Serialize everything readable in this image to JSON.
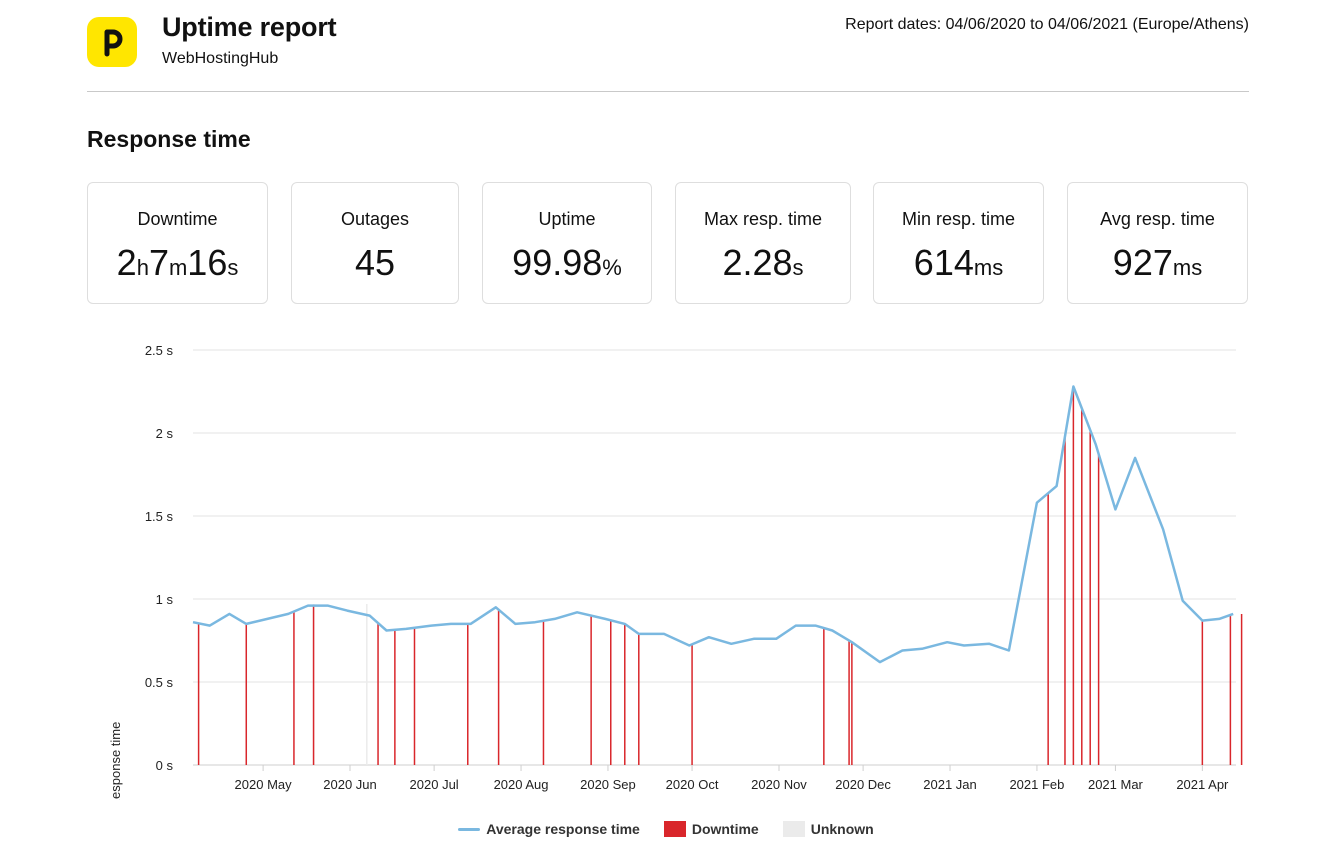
{
  "header": {
    "title": "Uptime report",
    "subtitle": "WebHostingHub",
    "report_dates": "Report dates: 04/06/2020 to 04/06/2021 (Europe/Athens)",
    "logo_color": "#ffe600"
  },
  "section_title": "Response time",
  "stats": [
    {
      "label": "Downtime",
      "parts": [
        {
          "v": "2",
          "unit": false
        },
        {
          "v": "h",
          "unit": true
        },
        {
          "v": "7",
          "unit": false
        },
        {
          "v": "m",
          "unit": true
        },
        {
          "v": "16",
          "unit": false
        },
        {
          "v": "s",
          "unit": true
        }
      ]
    },
    {
      "label": "Outages",
      "parts": [
        {
          "v": "45",
          "unit": false
        }
      ]
    },
    {
      "label": "Uptime",
      "parts": [
        {
          "v": "99.98",
          "unit": false
        },
        {
          "v": "%",
          "unit": true
        }
      ]
    },
    {
      "label": "Max resp. time",
      "parts": [
        {
          "v": "2.28",
          "unit": false
        },
        {
          "v": "s",
          "unit": true
        }
      ]
    },
    {
      "label": "Min resp. time",
      "parts": [
        {
          "v": "614",
          "unit": false
        },
        {
          "v": "ms",
          "unit": true
        }
      ]
    },
    {
      "label": "Avg resp. time",
      "parts": [
        {
          "v": "927",
          "unit": false
        },
        {
          "v": "ms",
          "unit": true
        }
      ]
    }
  ],
  "chart_data": {
    "type": "line",
    "ylabel": "Response time",
    "ylim": [
      0,
      2.5
    ],
    "yticks": [
      0,
      0.5,
      1,
      1.5,
      2,
      2.5
    ],
    "ytick_labels": [
      "0 s",
      "0.5 s",
      "1 s",
      "1.5 s",
      "2 s",
      "2.5 s"
    ],
    "xlim": [
      "2020-04-06",
      "2021-04-13"
    ],
    "xticks": [
      {
        "date": "2020-05-01",
        "label": "2020 May"
      },
      {
        "date": "2020-06-01",
        "label": "2020 Jun"
      },
      {
        "date": "2020-07-01",
        "label": "2020 Jul"
      },
      {
        "date": "2020-08-01",
        "label": "2020 Aug"
      },
      {
        "date": "2020-09-01",
        "label": "2020 Sep"
      },
      {
        "date": "2020-10-01",
        "label": "2020 Oct"
      },
      {
        "date": "2020-11-01",
        "label": "2020 Nov"
      },
      {
        "date": "2020-12-01",
        "label": "2020 Dec"
      },
      {
        "date": "2021-01-01",
        "label": "2021 Jan"
      },
      {
        "date": "2021-02-01",
        "label": "2021 Feb"
      },
      {
        "date": "2021-03-01",
        "label": "2021 Mar"
      },
      {
        "date": "2021-04-01",
        "label": "2021 Apr"
      }
    ],
    "grid": true,
    "legend_position": "bottom",
    "series": [
      {
        "name": "Average response time",
        "color": "#7ab8e0",
        "points": [
          [
            "2020-04-06",
            0.86
          ],
          [
            "2020-04-12",
            0.84
          ],
          [
            "2020-04-19",
            0.91
          ],
          [
            "2020-04-25",
            0.85
          ],
          [
            "2020-05-10",
            0.91
          ],
          [
            "2020-05-17",
            0.96
          ],
          [
            "2020-05-24",
            0.96
          ],
          [
            "2020-05-31",
            0.93
          ],
          [
            "2020-06-08",
            0.9
          ],
          [
            "2020-06-14",
            0.81
          ],
          [
            "2020-06-21",
            0.82
          ],
          [
            "2020-06-30",
            0.84
          ],
          [
            "2020-07-07",
            0.85
          ],
          [
            "2020-07-14",
            0.85
          ],
          [
            "2020-07-23",
            0.95
          ],
          [
            "2020-07-30",
            0.85
          ],
          [
            "2020-08-06",
            0.86
          ],
          [
            "2020-08-13",
            0.88
          ],
          [
            "2020-08-21",
            0.92
          ],
          [
            "2020-08-31",
            0.88
          ],
          [
            "2020-09-07",
            0.85
          ],
          [
            "2020-09-12",
            0.79
          ],
          [
            "2020-09-21",
            0.79
          ],
          [
            "2020-09-30",
            0.72
          ],
          [
            "2020-10-07",
            0.77
          ],
          [
            "2020-10-15",
            0.73
          ],
          [
            "2020-10-23",
            0.76
          ],
          [
            "2020-10-31",
            0.76
          ],
          [
            "2020-11-07",
            0.84
          ],
          [
            "2020-11-14",
            0.84
          ],
          [
            "2020-11-20",
            0.81
          ],
          [
            "2020-11-27",
            0.74
          ],
          [
            "2020-12-07",
            0.62
          ],
          [
            "2020-12-15",
            0.69
          ],
          [
            "2020-12-22",
            0.7
          ],
          [
            "2020-12-31",
            0.74
          ],
          [
            "2021-01-06",
            0.72
          ],
          [
            "2021-01-15",
            0.73
          ],
          [
            "2021-01-22",
            0.69
          ],
          [
            "2021-02-01",
            1.58
          ],
          [
            "2021-02-08",
            1.68
          ],
          [
            "2021-02-14",
            2.28
          ],
          [
            "2021-02-22",
            1.93
          ],
          [
            "2021-03-01",
            1.54
          ],
          [
            "2021-03-08",
            1.85
          ],
          [
            "2021-03-18",
            1.42
          ],
          [
            "2021-03-25",
            0.99
          ],
          [
            "2021-04-01",
            0.87
          ],
          [
            "2021-04-07",
            0.88
          ],
          [
            "2021-04-12",
            0.91
          ]
        ]
      }
    ],
    "downtime_color": "#d9262b",
    "downtime_label": "Downtime",
    "downtime_dates": [
      "2020-04-08",
      "2020-04-25",
      "2020-05-12",
      "2020-05-19",
      "2020-06-11",
      "2020-06-17",
      "2020-06-24",
      "2020-07-13",
      "2020-07-24",
      "2020-08-09",
      "2020-08-26",
      "2020-09-02",
      "2020-09-07",
      "2020-09-12",
      "2020-10-01",
      "2020-11-17",
      "2020-11-26",
      "2020-11-27",
      "2021-02-05",
      "2021-02-11",
      "2021-02-14",
      "2021-02-17",
      "2021-02-20",
      "2021-02-23",
      "2021-04-01",
      "2021-04-11",
      "2021-04-15"
    ],
    "unknown_color": "#ebebeb",
    "unknown_label": "Unknown",
    "unknown_dates": [
      "2020-05-19",
      "2020-06-07"
    ]
  }
}
